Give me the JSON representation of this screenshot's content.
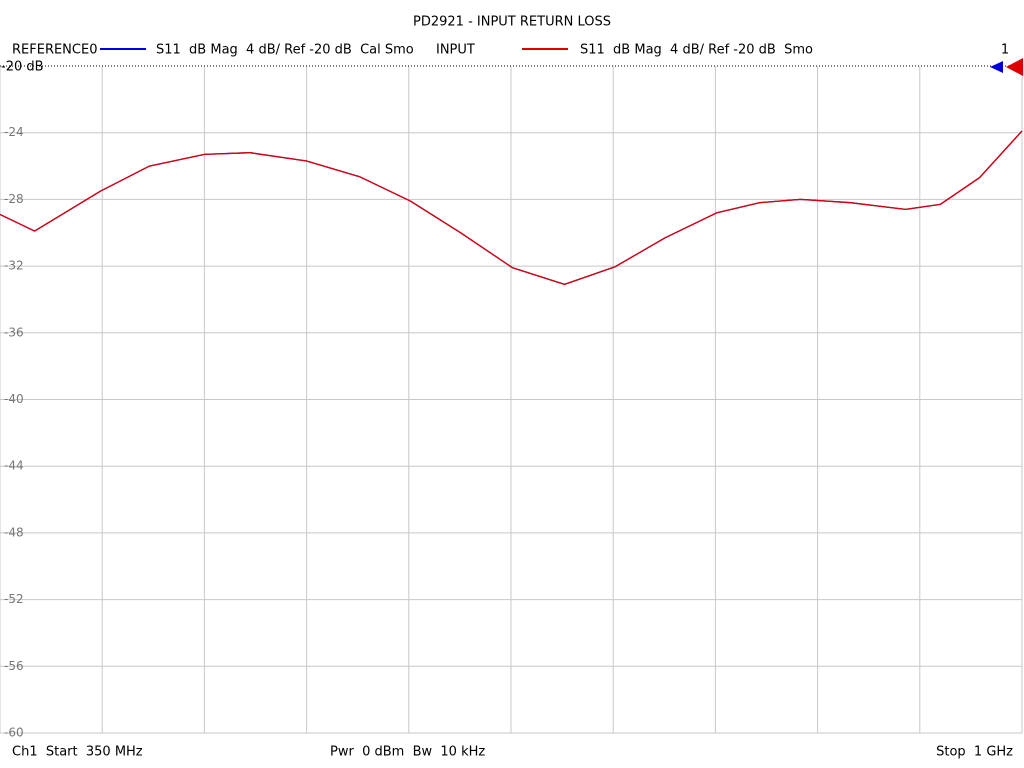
{
  "chart_data": {
    "type": "line",
    "title": "PD2921 - INPUT RETURN LOSS",
    "reference_label": "-20 dB",
    "marker_label": "1",
    "footer": [
      "Ch1  Start  350 MHz",
      "Pwr  0 dBm  Bw  10 kHz",
      "Stop  1 GHz"
    ],
    "x": [
      350,
      372,
      414,
      445,
      480,
      509,
      545,
      579,
      611,
      643,
      676,
      709,
      741,
      773,
      806,
      833,
      859,
      891,
      926,
      948,
      973,
      1000
    ],
    "xlim": [
      350,
      1000
    ],
    "ylim": [
      -60,
      -20
    ],
    "yticks": [
      -20,
      -24,
      -28,
      -32,
      -36,
      -40,
      -44,
      -48,
      -52,
      -56,
      -60
    ],
    "grid": true,
    "series": [
      {
        "name": "REFERENCE0",
        "description": "S11  dB Mag  4 dB/ Ref -20 dB  Cal Smo",
        "color": "#0000dd",
        "values": [
          -28.9,
          -29.9,
          -27.5,
          -26.0,
          -25.3,
          -25.2,
          -25.7,
          -26.65,
          -28.1,
          -30.0,
          -32.1,
          -33.1,
          -32.05,
          -30.3,
          -28.8,
          -28.2,
          -28.0,
          -28.2,
          -28.6,
          -28.3,
          -26.7,
          -23.9
        ]
      },
      {
        "name": "INPUT",
        "description": "S11  dB Mag  4 dB/ Ref -20 dB  Smo",
        "color": "#dd0000",
        "values": [
          -28.9,
          -29.9,
          -27.5,
          -26.0,
          -25.3,
          -25.2,
          -25.7,
          -26.65,
          -28.1,
          -30.0,
          -32.1,
          -33.1,
          -32.05,
          -30.3,
          -28.8,
          -28.2,
          -28.0,
          -28.2,
          -28.6,
          -28.3,
          -26.7,
          -23.9
        ]
      }
    ]
  }
}
